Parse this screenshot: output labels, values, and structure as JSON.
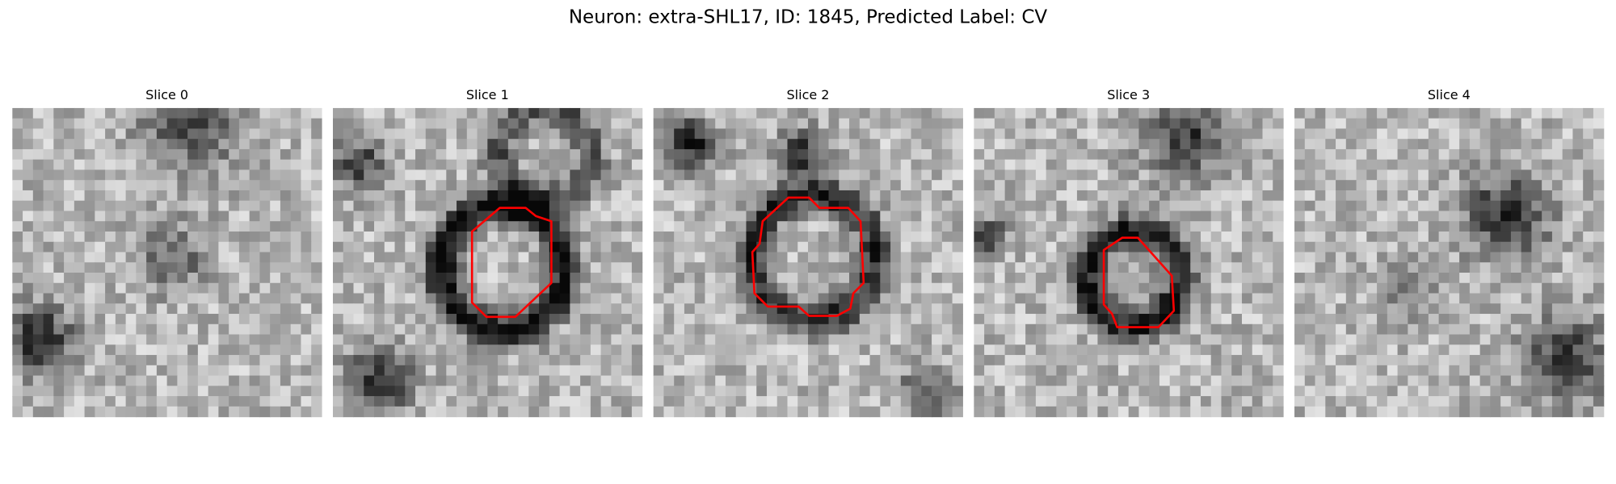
{
  "title": "Neuron: extra-SHL17, ID: 1845, Predicted Label: CV",
  "panels": [
    {
      "title": "Slice 0"
    },
    {
      "title": "Slice 1"
    },
    {
      "title": "Slice 2"
    },
    {
      "title": "Slice 3"
    },
    {
      "title": "Slice 4"
    }
  ]
}
